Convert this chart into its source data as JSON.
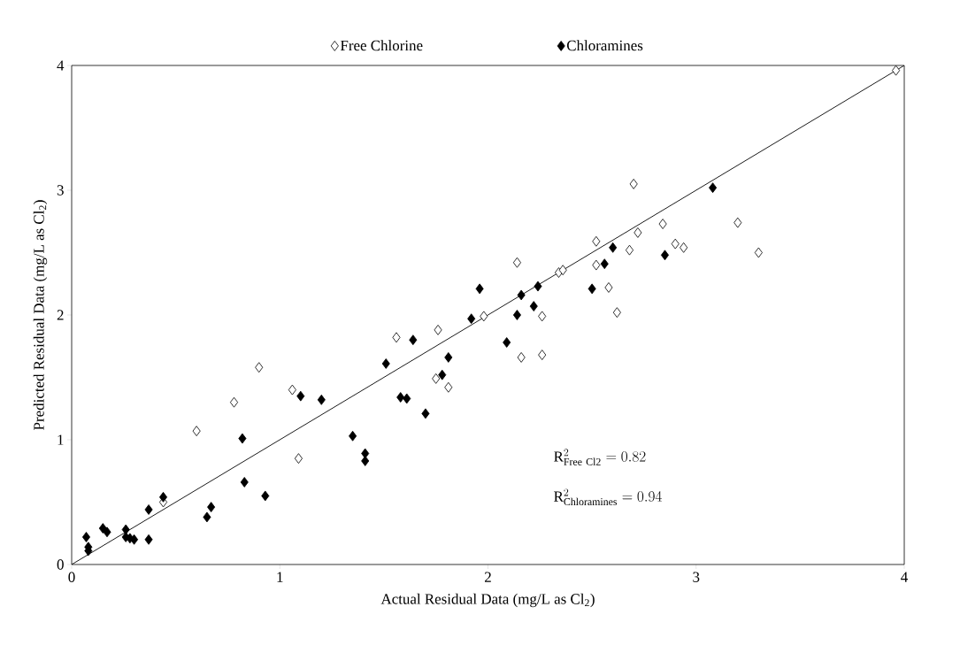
{
  "chart_data": {
    "type": "scatter",
    "xlabel": "Actual Residual Data (mg/L as Cl$_{2}$)",
    "ylabel": "Predicted Residual Data (mg/L as Cl$_{2}$)",
    "xlim": [
      0,
      4
    ],
    "ylim": [
      0,
      4
    ],
    "xticks": [
      0,
      1,
      2,
      3,
      4
    ],
    "yticks": [
      0,
      1,
      2,
      3,
      4
    ],
    "grid": false,
    "legend": "top",
    "marker": "diamond",
    "annotations": [
      "\\mathrm{R}^{2}_{\\mathrm{Free\\ Cl2}} = 0.82",
      "\\mathrm{R}^{2}_{\\mathrm{Chloramines}} = 0.94"
    ],
    "series": [
      {
        "name": "Free Chlorine",
        "color": "#ffffff",
        "x": [
          3.96,
          2.7,
          2.52,
          2.52,
          2.72,
          2.84,
          2.9,
          2.94,
          2.68,
          3.2,
          3.3,
          2.58,
          2.62,
          2.34,
          2.36,
          2.14,
          1.98,
          2.26,
          2.16,
          2.26,
          1.56,
          1.76,
          1.75,
          1.81,
          0.9,
          0.78,
          1.06,
          1.09,
          0.6,
          0.44
        ],
        "values": [
          3.96,
          3.05,
          2.59,
          2.4,
          2.66,
          2.73,
          2.57,
          2.54,
          2.52,
          2.74,
          2.5,
          2.22,
          2.02,
          2.34,
          2.36,
          2.42,
          1.99,
          1.99,
          1.66,
          1.68,
          1.82,
          1.88,
          1.49,
          1.42,
          1.58,
          1.3,
          1.4,
          0.85,
          1.07,
          0.5
        ]
      },
      {
        "name": "Chloramines",
        "color": "#000000",
        "x": [
          3.08,
          2.6,
          2.56,
          2.5,
          2.85,
          2.24,
          2.22,
          2.16,
          2.14,
          1.96,
          1.92,
          2.09,
          1.64,
          1.81,
          1.78,
          1.51,
          1.58,
          1.61,
          1.7,
          1.35,
          1.41,
          1.41,
          1.1,
          1.2,
          0.82,
          0.83,
          0.93,
          0.65,
          0.67,
          0.44,
          0.37,
          0.37,
          0.26,
          0.26,
          0.28,
          0.3,
          0.15,
          0.17,
          0.07,
          0.08,
          0.08
        ],
        "values": [
          3.02,
          2.54,
          2.41,
          2.21,
          2.48,
          2.23,
          2.07,
          2.16,
          2.0,
          2.21,
          1.97,
          1.78,
          1.8,
          1.66,
          1.52,
          1.61,
          1.34,
          1.33,
          1.21,
          1.03,
          0.89,
          0.83,
          1.35,
          1.32,
          1.01,
          0.66,
          0.55,
          0.38,
          0.46,
          0.54,
          0.44,
          0.2,
          0.28,
          0.22,
          0.21,
          0.2,
          0.29,
          0.26,
          0.22,
          0.14,
          0.11
        ]
      },
      {
        "type": "line",
        "color": "#000000",
        "marker": "none",
        "x": [
          0,
          4
        ],
        "values": [
          0,
          4
        ]
      }
    ]
  }
}
